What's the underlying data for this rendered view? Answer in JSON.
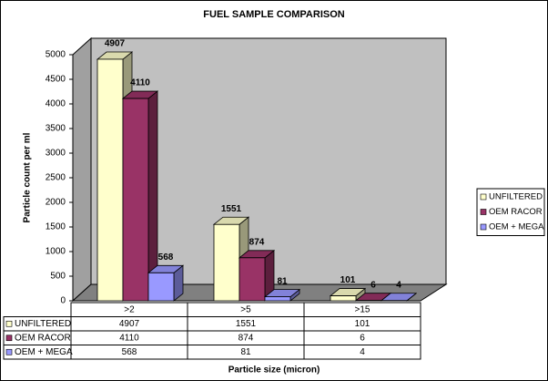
{
  "chart_data": {
    "type": "bar3d",
    "title": "FUEL SAMPLE COMPARISON",
    "y_label": "Particle count per ml",
    "x_label": "Particle size (micron)",
    "categories": [
      ">2",
      ">5",
      ">15"
    ],
    "series": [
      {
        "name": "UNFILTERED",
        "color": "#ffffcc",
        "values": [
          4907,
          1551,
          101
        ]
      },
      {
        "name": "OEM RACOR",
        "color": "#993366",
        "values": [
          4110,
          874,
          6
        ]
      },
      {
        "name": "OEM + MEGA",
        "color": "#9999ff",
        "values": [
          568,
          81,
          4
        ]
      }
    ],
    "ylim": [
      0,
      5000
    ],
    "yticks": [
      0,
      500,
      1000,
      1500,
      2000,
      2500,
      3000,
      3500,
      4000,
      4500,
      5000
    ],
    "legend": "right",
    "data_table": true
  }
}
